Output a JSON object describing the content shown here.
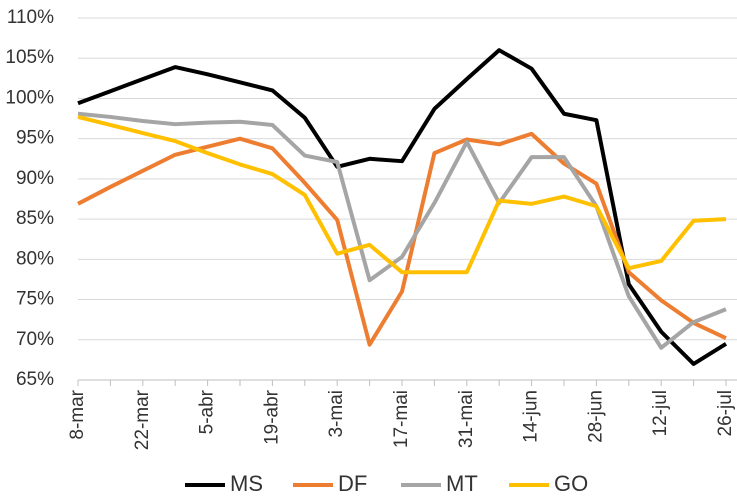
{
  "chart_data": {
    "type": "line",
    "categories": [
      "8-mar",
      null,
      "22-mar",
      null,
      "5-abr",
      null,
      "19-abr",
      null,
      "3-mai",
      null,
      "17-mai",
      null,
      "31-mai",
      null,
      "14-jun",
      null,
      "28-jun",
      null,
      "12-jul",
      null,
      "26-jul"
    ],
    "series": [
      {
        "name": "MS",
        "color": "#000000",
        "values": [
          99.4,
          100.9,
          102.4,
          103.9,
          103.0,
          102.0,
          101.0,
          97.6,
          91.5,
          92.5,
          92.2,
          98.7,
          102.4,
          106.0,
          103.7,
          98.1,
          97.3,
          76.9,
          71.0,
          67.0,
          69.5
        ]
      },
      {
        "name": "DF",
        "color": "#ed7d31",
        "values": [
          86.9,
          89.0,
          91.0,
          93.0,
          94.0,
          95.0,
          93.8,
          89.5,
          84.9,
          69.4,
          76.0,
          93.2,
          94.9,
          94.3,
          95.6,
          91.9,
          89.4,
          78.4,
          74.9,
          72.1,
          70.2
        ]
      },
      {
        "name": "MT",
        "color": "#a5a5a5",
        "values": [
          98.1,
          97.7,
          97.2,
          96.8,
          97.0,
          97.1,
          96.7,
          92.9,
          92.1,
          77.4,
          80.3,
          87.0,
          94.6,
          87.0,
          92.7,
          92.7,
          86.6,
          75.4,
          69.0,
          72.2,
          73.8
        ]
      },
      {
        "name": "GO",
        "color": "#ffc000",
        "values": [
          97.7,
          96.7,
          95.7,
          94.7,
          93.2,
          91.8,
          90.6,
          88.0,
          80.7,
          81.8,
          78.4,
          78.4,
          78.4,
          87.3,
          86.9,
          87.8,
          86.6,
          78.9,
          79.8,
          84.8,
          85.0
        ]
      }
    ],
    "ylim": [
      65,
      110
    ],
    "yticks": [
      {
        "value": 65,
        "label": "65%"
      },
      {
        "value": 70,
        "label": "70%"
      },
      {
        "value": 75,
        "label": "75%"
      },
      {
        "value": 80,
        "label": "80%"
      },
      {
        "value": 85,
        "label": "85%"
      },
      {
        "value": 90,
        "label": "90%"
      },
      {
        "value": 95,
        "label": "95%"
      },
      {
        "value": 100,
        "label": "100%"
      },
      {
        "value": 105,
        "label": "105%"
      },
      {
        "value": 110,
        "label": "110%"
      }
    ],
    "grid": true,
    "legend": "bottom"
  }
}
